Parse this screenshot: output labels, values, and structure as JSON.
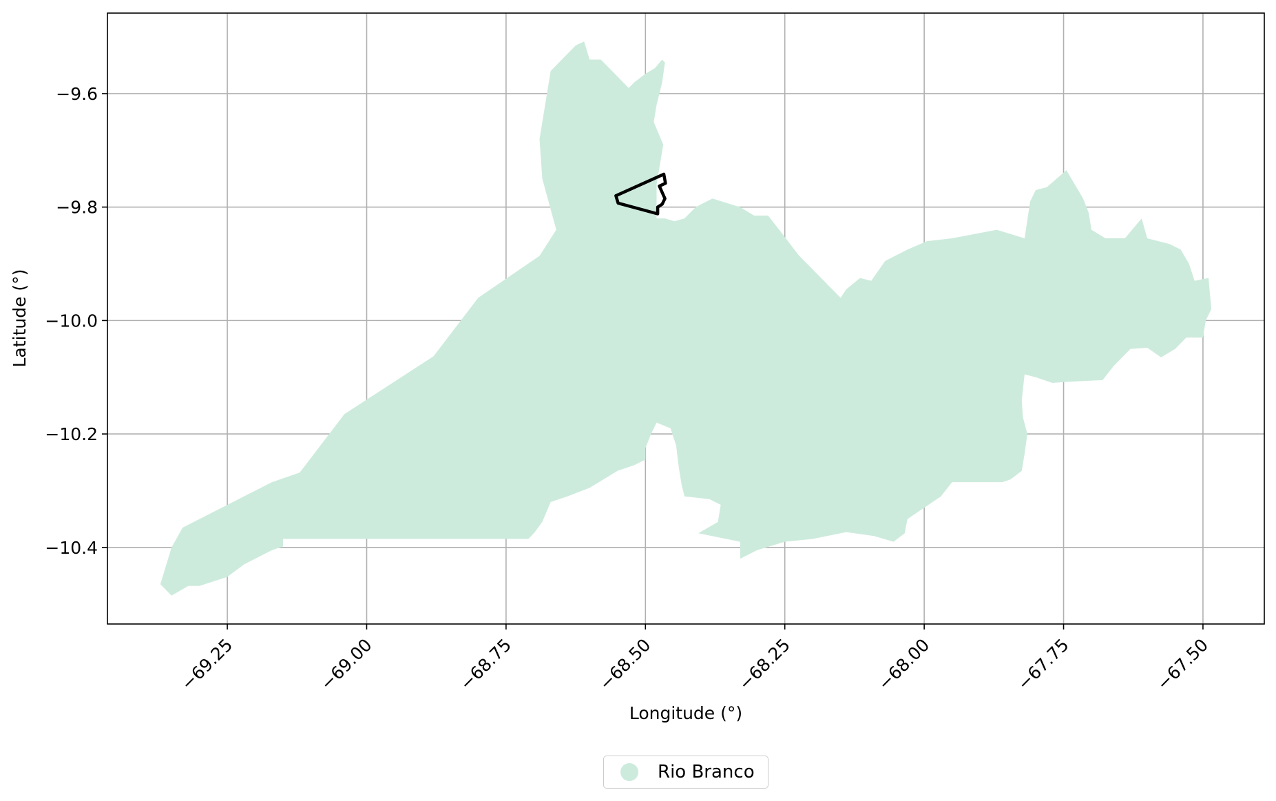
{
  "chart_data": {
    "type": "map",
    "xlabel": "Longitude (°)",
    "ylabel": "Latitude (°)",
    "xlim": [
      -69.465,
      -67.39
    ],
    "ylim": [
      -10.535,
      -9.458
    ],
    "xticks": [
      {
        "value": -69.25,
        "label": "−69.25"
      },
      {
        "value": -69.0,
        "label": "−69.00"
      },
      {
        "value": -68.75,
        "label": "−68.75"
      },
      {
        "value": -68.5,
        "label": "−68.50"
      },
      {
        "value": -68.25,
        "label": "−68.25"
      },
      {
        "value": -68.0,
        "label": "−68.00"
      },
      {
        "value": -67.75,
        "label": "−67.75"
      },
      {
        "value": -67.5,
        "label": "−67.50"
      }
    ],
    "yticks": [
      {
        "value": -9.6,
        "label": "−9.6"
      },
      {
        "value": -9.8,
        "label": "−9.8"
      },
      {
        "value": -10.0,
        "label": "−10.0"
      },
      {
        "value": -10.2,
        "label": "−10.2"
      },
      {
        "value": -10.4,
        "label": "−10.4"
      }
    ],
    "grid": true,
    "legend_position": "bottom-center",
    "series": [
      {
        "name": "Rio Branco",
        "kind": "filled-polygon",
        "color": "#cdebdd",
        "coordinates": [
          [
            -69.37,
            -10.465
          ],
          [
            -69.35,
            -10.4
          ],
          [
            -69.33,
            -10.365
          ],
          [
            -69.17,
            -10.285
          ],
          [
            -69.12,
            -10.268
          ],
          [
            -69.04,
            -10.165
          ],
          [
            -68.88,
            -10.063
          ],
          [
            -68.8,
            -9.96
          ],
          [
            -68.69,
            -9.886
          ],
          [
            -68.66,
            -9.84
          ],
          [
            -68.685,
            -9.75
          ],
          [
            -68.69,
            -9.68
          ],
          [
            -68.67,
            -9.56
          ],
          [
            -68.625,
            -9.515
          ],
          [
            -68.61,
            -9.508
          ],
          [
            -68.6,
            -9.54
          ],
          [
            -68.58,
            -9.54
          ],
          [
            -68.53,
            -9.59
          ],
          [
            -68.52,
            -9.58
          ],
          [
            -68.5,
            -9.565
          ],
          [
            -68.483,
            -9.555
          ],
          [
            -68.47,
            -9.54
          ],
          [
            -68.465,
            -9.545
          ],
          [
            -68.47,
            -9.58
          ],
          [
            -68.48,
            -9.62
          ],
          [
            -68.485,
            -9.65
          ],
          [
            -68.468,
            -9.69
          ],
          [
            -68.48,
            -9.76
          ],
          [
            -68.48,
            -9.82
          ],
          [
            -68.465,
            -9.82
          ],
          [
            -68.448,
            -9.825
          ],
          [
            -68.43,
            -9.82
          ],
          [
            -68.41,
            -9.8
          ],
          [
            -68.38,
            -9.785
          ],
          [
            -68.33,
            -9.8
          ],
          [
            -68.305,
            -9.815
          ],
          [
            -68.28,
            -9.815
          ],
          [
            -68.26,
            -9.84
          ],
          [
            -68.225,
            -9.885
          ],
          [
            -68.15,
            -9.96
          ],
          [
            -68.14,
            -9.945
          ],
          [
            -68.115,
            -9.925
          ],
          [
            -68.095,
            -9.93
          ],
          [
            -68.07,
            -9.895
          ],
          [
            -68.03,
            -9.875
          ],
          [
            -67.995,
            -9.86
          ],
          [
            -67.95,
            -9.855
          ],
          [
            -67.87,
            -9.84
          ],
          [
            -67.82,
            -9.855
          ],
          [
            -67.81,
            -9.79
          ],
          [
            -67.8,
            -9.77
          ],
          [
            -67.78,
            -9.765
          ],
          [
            -67.745,
            -9.735
          ],
          [
            -67.715,
            -9.785
          ],
          [
            -67.705,
            -9.81
          ],
          [
            -67.7,
            -9.84
          ],
          [
            -67.675,
            -9.855
          ],
          [
            -67.64,
            -9.855
          ],
          [
            -67.61,
            -9.82
          ],
          [
            -67.6,
            -9.855
          ],
          [
            -67.58,
            -9.86
          ],
          [
            -67.56,
            -9.865
          ],
          [
            -67.54,
            -9.875
          ],
          [
            -67.525,
            -9.9
          ],
          [
            -67.515,
            -9.93
          ],
          [
            -67.49,
            -9.925
          ],
          [
            -67.485,
            -9.98
          ],
          [
            -67.495,
            -10.0
          ],
          [
            -67.5,
            -10.03
          ],
          [
            -67.53,
            -10.03
          ],
          [
            -67.55,
            -10.05
          ],
          [
            -67.575,
            -10.065
          ],
          [
            -67.6,
            -10.048
          ],
          [
            -67.63,
            -10.05
          ],
          [
            -67.66,
            -10.08
          ],
          [
            -67.68,
            -10.105
          ],
          [
            -67.74,
            -10.108
          ],
          [
            -67.77,
            -10.11
          ],
          [
            -67.8,
            -10.1
          ],
          [
            -67.82,
            -10.095
          ],
          [
            -67.825,
            -10.14
          ],
          [
            -67.823,
            -10.17
          ],
          [
            -67.815,
            -10.2
          ],
          [
            -67.82,
            -10.235
          ],
          [
            -67.825,
            -10.265
          ],
          [
            -67.845,
            -10.28
          ],
          [
            -67.86,
            -10.285
          ],
          [
            -67.95,
            -10.285
          ],
          [
            -67.97,
            -10.31
          ],
          [
            -68.03,
            -10.35
          ],
          [
            -68.035,
            -10.375
          ],
          [
            -68.055,
            -10.39
          ],
          [
            -68.09,
            -10.38
          ],
          [
            -68.14,
            -10.373
          ],
          [
            -68.2,
            -10.385
          ],
          [
            -68.25,
            -10.39
          ],
          [
            -68.3,
            -10.405
          ],
          [
            -68.33,
            -10.42
          ],
          [
            -68.33,
            -10.39
          ],
          [
            -68.355,
            -10.385
          ],
          [
            -68.405,
            -10.375
          ],
          [
            -68.37,
            -10.355
          ],
          [
            -68.365,
            -10.325
          ],
          [
            -68.385,
            -10.315
          ],
          [
            -68.43,
            -10.31
          ],
          [
            -68.435,
            -10.29
          ],
          [
            -68.44,
            -10.26
          ],
          [
            -68.445,
            -10.22
          ],
          [
            -68.455,
            -10.19
          ],
          [
            -68.48,
            -10.18
          ],
          [
            -68.49,
            -10.2
          ],
          [
            -68.5,
            -10.225
          ],
          [
            -68.5,
            -10.245
          ],
          [
            -68.52,
            -10.255
          ],
          [
            -68.55,
            -10.265
          ],
          [
            -68.6,
            -10.295
          ],
          [
            -68.64,
            -10.31
          ],
          [
            -68.67,
            -10.32
          ],
          [
            -68.685,
            -10.355
          ],
          [
            -68.7,
            -10.375
          ],
          [
            -68.71,
            -10.385
          ],
          [
            -69.15,
            -10.385
          ],
          [
            -69.15,
            -10.398
          ],
          [
            -69.17,
            -10.405
          ],
          [
            -69.22,
            -10.43
          ],
          [
            -69.25,
            -10.452
          ],
          [
            -69.3,
            -10.468
          ],
          [
            -69.32,
            -10.468
          ],
          [
            -69.35,
            -10.485
          ]
        ]
      },
      {
        "name": "",
        "kind": "outline-polygon",
        "color": "#000000",
        "coordinates": [
          [
            -68.553,
            -9.78
          ],
          [
            -68.467,
            -9.742
          ],
          [
            -68.464,
            -9.758
          ],
          [
            -68.475,
            -9.763
          ],
          [
            -68.465,
            -9.785
          ],
          [
            -68.47,
            -9.795
          ],
          [
            -68.478,
            -9.8
          ],
          [
            -68.478,
            -9.812
          ],
          [
            -68.549,
            -9.793
          ]
        ]
      }
    ]
  }
}
